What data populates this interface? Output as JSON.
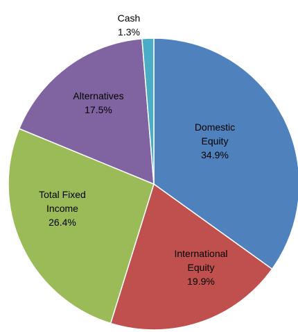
{
  "chart_data": {
    "type": "pie",
    "categories": [
      "Domestic Equity",
      "International Equity",
      "Total Fixed Income",
      "Alternatives",
      "Cash"
    ],
    "values": [
      34.9,
      19.9,
      26.4,
      17.5,
      1.3
    ],
    "value_labels": [
      "34.9%",
      "19.9%",
      "26.4%",
      "17.5%",
      "1.3%"
    ],
    "colors": [
      "#4f81bd",
      "#c0504d",
      "#9bbb59",
      "#8064a2",
      "#4bacc6"
    ]
  }
}
